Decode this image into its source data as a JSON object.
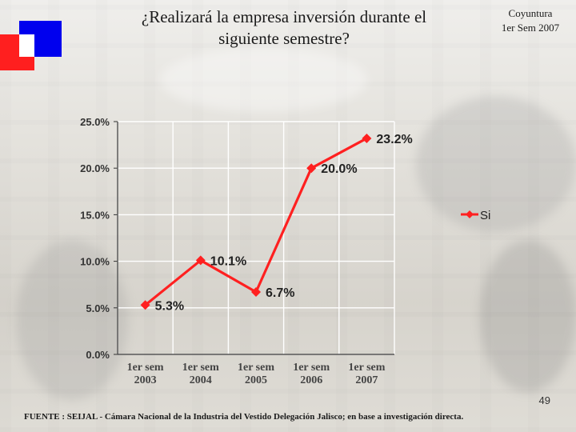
{
  "header": {
    "title_line1": "¿Realizará la empresa inversión durante el",
    "title_line2": "siguiente semestre?",
    "corner_line1": "Coyuntura",
    "corner_line2": "1er Sem 2007"
  },
  "footer": {
    "page_number": "49",
    "source": "FUENTE :  SEIJAL - Cámara Nacional de la Industria del Vestido Delegación Jalisco;  en base a investigación directa."
  },
  "colors": {
    "series": "#ff2020",
    "accent_blue": "#0000ee",
    "accent_red": "#ff1f1f"
  },
  "chart_data": {
    "type": "line",
    "title": "¿Realizará la empresa inversión durante el siguiente semestre?",
    "categories": [
      "1er sem 2003",
      "1er sem 2004",
      "1er sem 2005",
      "1er sem 2006",
      "1er sem 2007"
    ],
    "category_lines": [
      [
        "1er sem",
        "2003"
      ],
      [
        "1er sem",
        "2004"
      ],
      [
        "1er sem",
        "2005"
      ],
      [
        "1er sem",
        "2006"
      ],
      [
        "1er sem",
        "2007"
      ]
    ],
    "series": [
      {
        "name": "Si",
        "values": [
          5.3,
          10.1,
          6.7,
          20.0,
          23.2
        ],
        "labels": [
          "5.3%",
          "10.1%",
          "6.7%",
          "20.0%",
          "23.2%"
        ]
      }
    ],
    "y_ticks": [
      0,
      5,
      10,
      15,
      20,
      25
    ],
    "y_tick_labels": [
      "0.0%",
      "5.0%",
      "10.0%",
      "15.0%",
      "20.0%",
      "25.0%"
    ],
    "ylim": [
      0,
      25
    ],
    "xlabel": "",
    "ylabel": "",
    "grid": true,
    "legend": "right"
  }
}
